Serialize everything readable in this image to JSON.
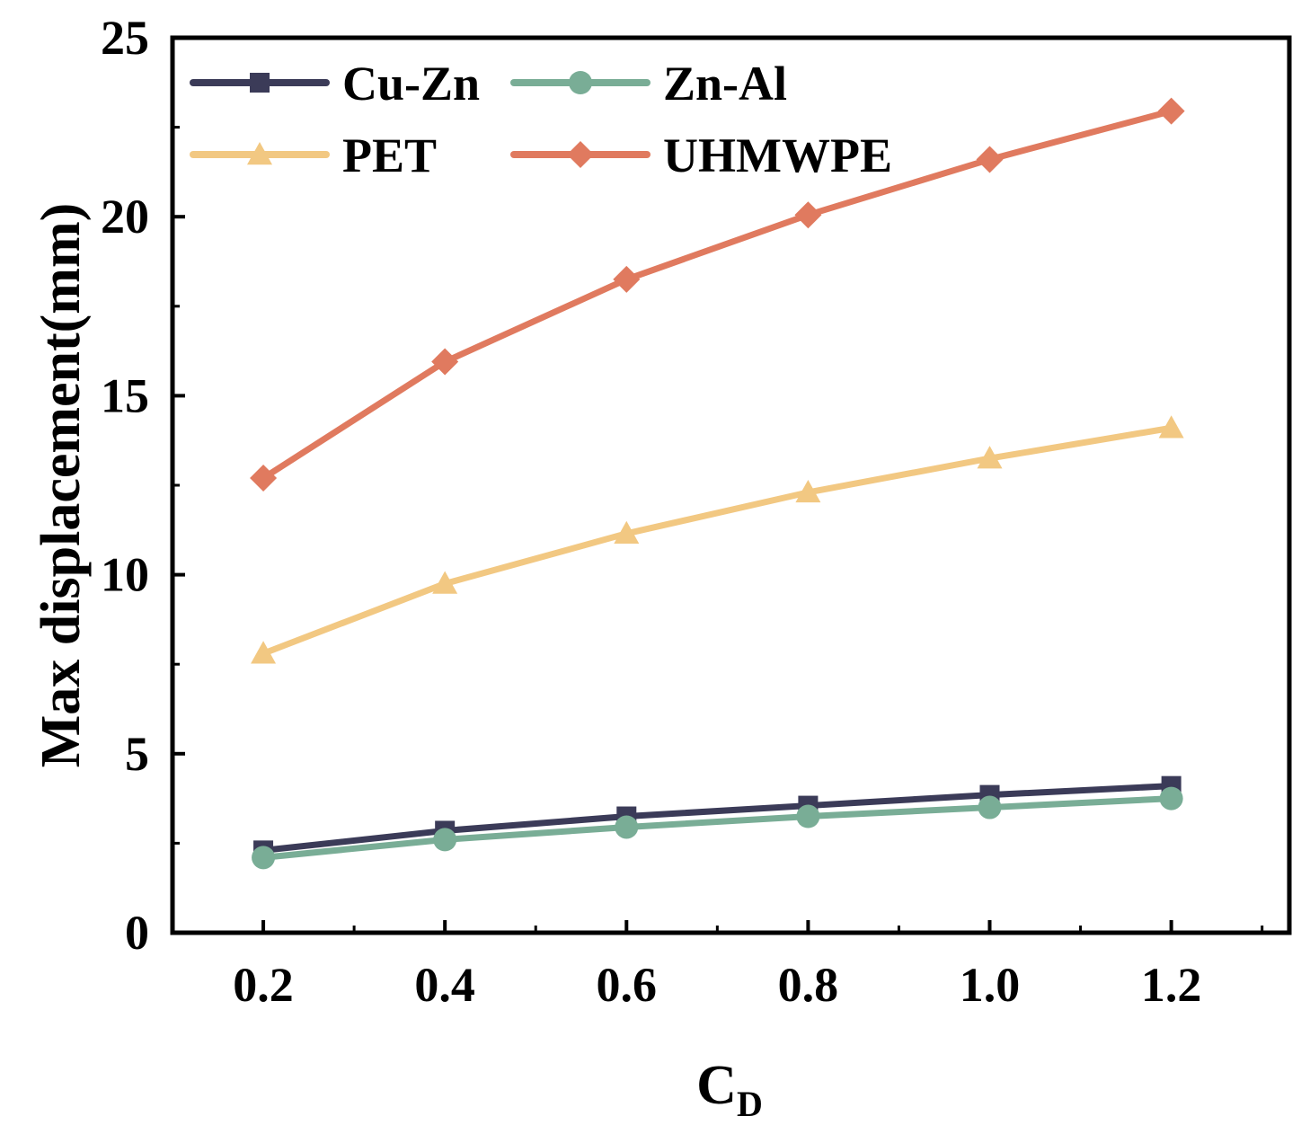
{
  "chart_data": {
    "type": "line",
    "title": "",
    "xlabel": {
      "main": "C",
      "sub": "D"
    },
    "ylabel": "Max displacement(mm)",
    "x": [
      0.2,
      0.4,
      0.6,
      0.8,
      1.0,
      1.2
    ],
    "x_tick_labels": [
      "0.2",
      "0.4",
      "0.6",
      "0.8",
      "1.0",
      "1.2"
    ],
    "xlim": [
      0.1,
      1.33
    ],
    "ylim": [
      0,
      25
    ],
    "y_ticks": [
      0,
      5,
      10,
      15,
      20,
      25
    ],
    "y_tick_labels": [
      "0",
      "5",
      "10",
      "15",
      "20",
      "25"
    ],
    "grid": false,
    "legend_position": "top-left",
    "series": [
      {
        "name": "Cu-Zn",
        "color": "#3b3b58",
        "marker": "square",
        "values": [
          2.3,
          2.85,
          3.25,
          3.55,
          3.85,
          4.1
        ]
      },
      {
        "name": "Zn-Al",
        "color": "#79ad96",
        "marker": "circle",
        "values": [
          2.1,
          2.6,
          2.95,
          3.25,
          3.5,
          3.75
        ]
      },
      {
        "name": "PET",
        "color": "#f2c882",
        "marker": "triangle",
        "values": [
          7.8,
          9.75,
          11.15,
          12.3,
          13.25,
          14.1
        ]
      },
      {
        "name": "UHMWPE",
        "color": "#e07a5f",
        "marker": "diamond",
        "values": [
          12.7,
          15.95,
          18.25,
          20.05,
          21.6,
          22.95
        ]
      }
    ]
  }
}
